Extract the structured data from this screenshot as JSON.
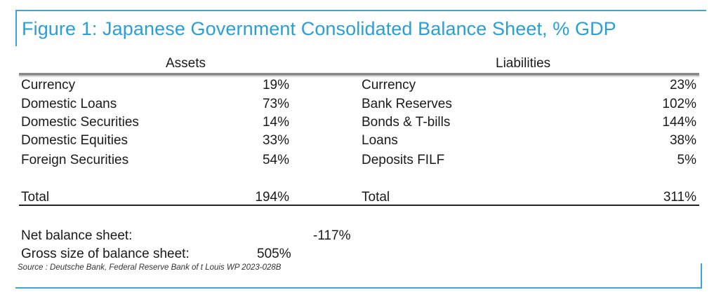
{
  "title": "Figure 1: Japanese Government Consolidated Balance Sheet, % GDP",
  "headers": {
    "assets": "Assets",
    "liabilities": "Liabilities"
  },
  "assets": [
    {
      "label": "Currency",
      "value": "19%"
    },
    {
      "label": "Domestic Loans",
      "value": "73%"
    },
    {
      "label": "Domestic Securities",
      "value": "14%"
    },
    {
      "label": "Domestic Equities",
      "value": "33%"
    },
    {
      "label": "Foreign Securities",
      "value": "54%"
    }
  ],
  "liabilities": [
    {
      "label": "Currency",
      "value": "23%"
    },
    {
      "label": "Bank Reserves",
      "value": "102%"
    },
    {
      "label": "Bonds & T-bills",
      "value": "144%"
    },
    {
      "label": "Loans",
      "value": "38%"
    },
    {
      "label": "Deposits FILF",
      "value": "5%"
    }
  ],
  "totals": {
    "assets_label": "Total",
    "assets_value": "194%",
    "liabilities_label": "Total",
    "liabilities_value": "311%"
  },
  "summary": {
    "net_label": "Net balance sheet:",
    "net_value": "-117%",
    "gross_label": "Gross size of balance sheet:",
    "gross_value": "505%"
  },
  "source": "Source : Deutsche Bank, Federal Reserve Bank of t Louis WP 2023-028B",
  "colors": {
    "accent": "#2a9fd6",
    "frame": "#3aa6d8"
  }
}
